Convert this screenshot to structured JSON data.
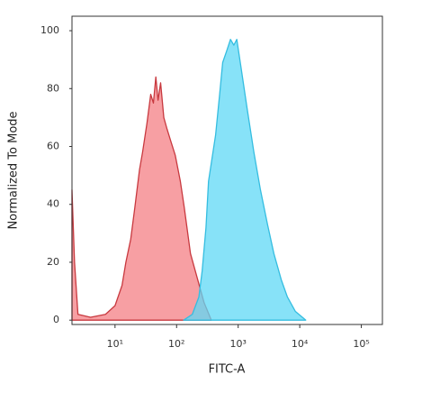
{
  "chart_data": {
    "type": "area",
    "ylabel": "Normalized To Mode",
    "xlabel": "FITC-A",
    "xscale": "log",
    "xlim": [
      2,
      220000
    ],
    "ylim": [
      -1.5,
      105
    ],
    "xticks": [
      {
        "value": 10,
        "label": "10¹"
      },
      {
        "value": 100,
        "label": "10²"
      },
      {
        "value": 1000,
        "label": "10³"
      },
      {
        "value": 10000,
        "label": "10⁴"
      },
      {
        "value": 100000,
        "label": "10⁵"
      }
    ],
    "yticks": [
      0,
      20,
      40,
      60,
      80,
      100
    ],
    "series": [
      {
        "color": "#f47f84",
        "edge": "#c8393f",
        "x": [
          2,
          2.2,
          2.5,
          4,
          7,
          10,
          13,
          15,
          18,
          21,
          25,
          28,
          33,
          38,
          42,
          46,
          50,
          55,
          62,
          70,
          80,
          95,
          115,
          133,
          168,
          220,
          280,
          366
        ],
        "values": [
          45,
          20,
          2,
          1,
          2,
          5,
          12,
          20,
          28,
          39,
          52,
          58,
          68,
          78,
          75,
          84,
          76,
          82,
          70,
          66,
          62,
          57,
          48,
          39,
          23,
          14,
          6,
          0
        ]
      },
      {
        "color": "#5fd8f5",
        "edge": "#35bde0",
        "x": [
          130,
          180,
          230,
          260,
          300,
          330,
          430,
          500,
          560,
          650,
          750,
          850,
          950,
          1100,
          1400,
          1800,
          2300,
          3000,
          3800,
          5000,
          6300,
          8500,
          12500
        ],
        "values": [
          0,
          2,
          8,
          17,
          32,
          48,
          64,
          78,
          89,
          93,
          97,
          95,
          97,
          88,
          73,
          58,
          45,
          33,
          23,
          14,
          8,
          3,
          0
        ]
      }
    ]
  }
}
